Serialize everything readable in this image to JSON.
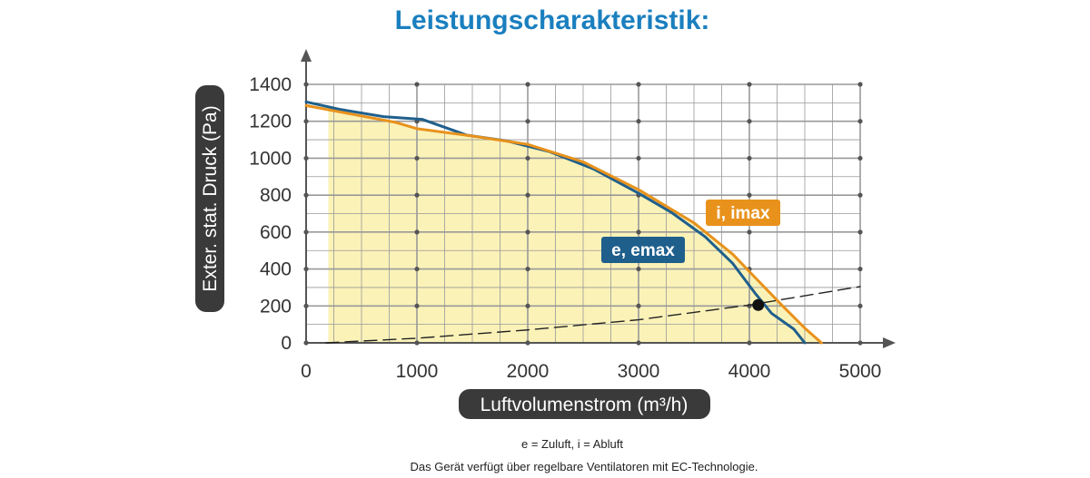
{
  "chart_data": {
    "type": "line",
    "title": "Leistungscharakteristik:",
    "xlabel": "Luftvolumenstrom (m³/h)",
    "ylabel": "Exter. stat. Druck (Pa)",
    "xlim": [
      0,
      5000
    ],
    "ylim": [
      0,
      1400
    ],
    "x_ticks": [
      0,
      1000,
      2000,
      3000,
      4000,
      5000
    ],
    "y_ticks": [
      0,
      200,
      400,
      600,
      800,
      1000,
      1200,
      1400
    ],
    "grid": true,
    "series": [
      {
        "name": "e, emax",
        "color": "#1f5f8c",
        "points": [
          [
            0,
            1305
          ],
          [
            300,
            1265
          ],
          [
            700,
            1225
          ],
          [
            1050,
            1210
          ],
          [
            1450,
            1125
          ],
          [
            1800,
            1095
          ],
          [
            2200,
            1035
          ],
          [
            2600,
            940
          ],
          [
            3000,
            810
          ],
          [
            3300,
            705
          ],
          [
            3600,
            575
          ],
          [
            3850,
            430
          ],
          [
            4050,
            270
          ],
          [
            4200,
            160
          ],
          [
            4400,
            75
          ],
          [
            4500,
            0
          ]
        ]
      },
      {
        "name": "i, imax",
        "color": "#e8921c",
        "points": [
          [
            0,
            1285
          ],
          [
            400,
            1240
          ],
          [
            800,
            1195
          ],
          [
            1000,
            1160
          ],
          [
            1500,
            1120
          ],
          [
            2000,
            1075
          ],
          [
            2500,
            980
          ],
          [
            3000,
            830
          ],
          [
            3500,
            650
          ],
          [
            3850,
            480
          ],
          [
            4050,
            355
          ],
          [
            4300,
            200
          ],
          [
            4500,
            80
          ],
          [
            4650,
            0
          ]
        ]
      },
      {
        "name": "",
        "style": "dashed",
        "color": "#222222",
        "points": [
          [
            180,
            0
          ],
          [
            1000,
            25
          ],
          [
            2000,
            70
          ],
          [
            3000,
            125
          ],
          [
            4000,
            205
          ],
          [
            4500,
            255
          ],
          [
            5000,
            305
          ]
        ]
      }
    ],
    "operating_point": {
      "x": 4080,
      "y": 205
    },
    "shaded_region": {
      "x_start": 200,
      "color": "#fbf2b8"
    },
    "footnote": "e = Zuluft, i = Abluft",
    "footnote2": "Das Gerät verfügt über regelbare Ventilatoren mit EC-Technologie."
  },
  "colors": {
    "title": "#1a7fbf",
    "grid": "#999999",
    "axis": "#555555",
    "pill": "#3a3a3a"
  }
}
